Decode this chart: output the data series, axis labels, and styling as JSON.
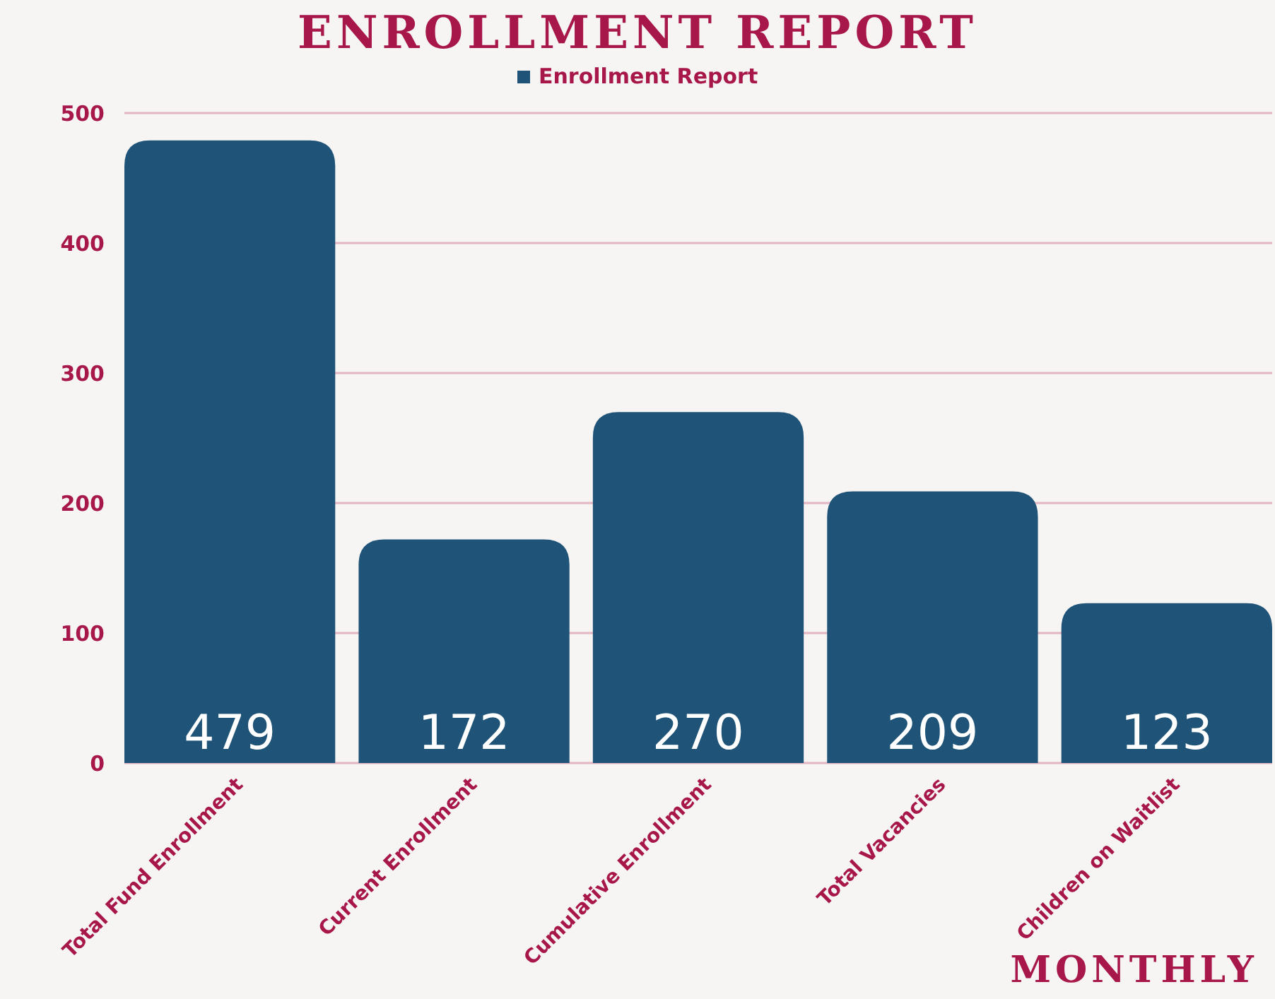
{
  "chart_data": {
    "type": "bar",
    "title": "ENROLLMENT REPORT",
    "annotations": [
      "MONTHLY"
    ],
    "categories": [
      "Total Fund Enrollment",
      "Current Enrollment",
      "Cumulative Enrollment",
      "Total Vacancies",
      "Children on Waitlist"
    ],
    "series": [
      {
        "name": "Enrollment Report",
        "color": "#1f5478",
        "values": [
          479,
          172,
          270,
          209,
          123
        ]
      }
    ],
    "ylim": [
      0,
      500
    ],
    "yticks": [
      0,
      100,
      200,
      300,
      400,
      500
    ],
    "grid": "y",
    "legend": "top",
    "data_labels": true
  }
}
